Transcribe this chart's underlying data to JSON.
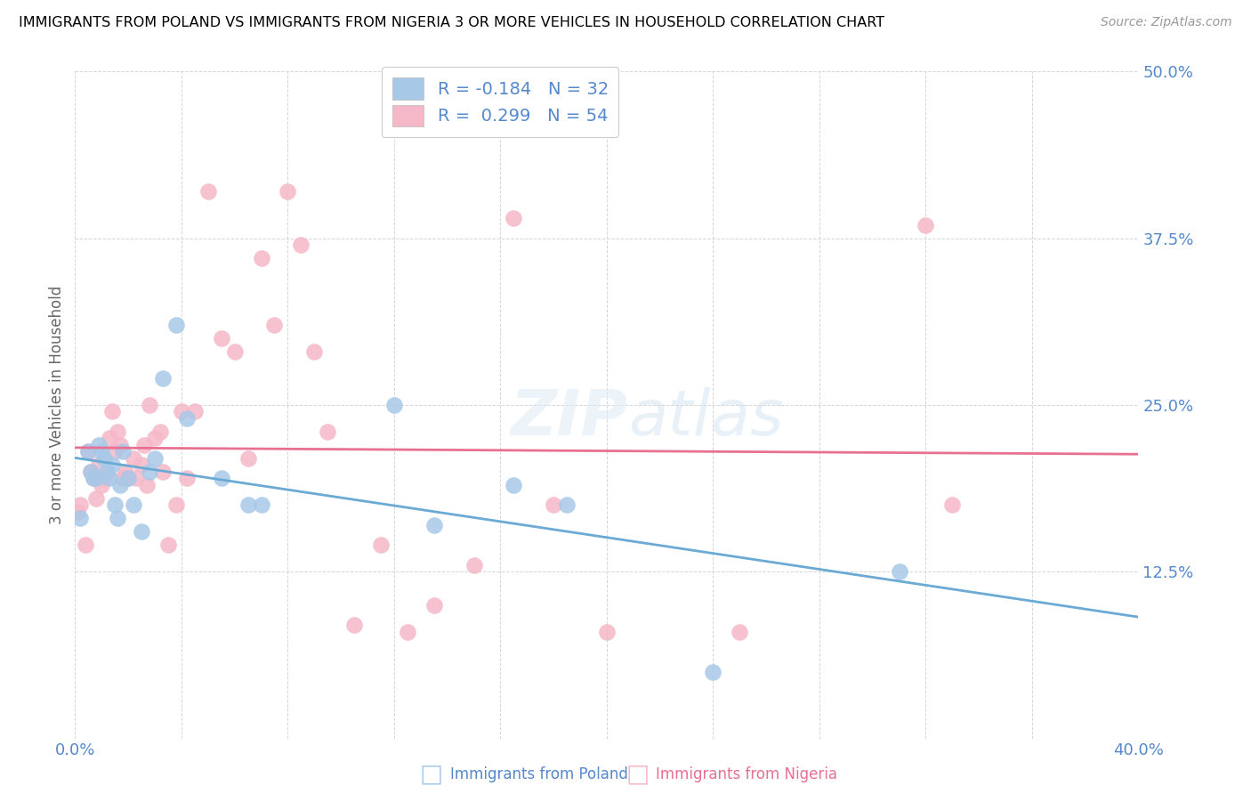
{
  "title": "IMMIGRANTS FROM POLAND VS IMMIGRANTS FROM NIGERIA 3 OR MORE VEHICLES IN HOUSEHOLD CORRELATION CHART",
  "source": "Source: ZipAtlas.com",
  "ylabel": "3 or more Vehicles in Household",
  "xlabel_poland": "Immigrants from Poland",
  "xlabel_nigeria": "Immigrants from Nigeria",
  "xlim": [
    0.0,
    0.4
  ],
  "ylim": [
    0.0,
    0.5
  ],
  "xticks": [
    0.0,
    0.04,
    0.08,
    0.12,
    0.16,
    0.2,
    0.24,
    0.28,
    0.32,
    0.36,
    0.4
  ],
  "yticks": [
    0.0,
    0.125,
    0.25,
    0.375,
    0.5
  ],
  "r_poland": -0.184,
  "n_poland": 32,
  "r_nigeria": 0.299,
  "n_nigeria": 54,
  "color_poland": "#a8c8e8",
  "color_nigeria": "#f5b8c8",
  "line_color_poland": "#6aaad4",
  "line_color_nigeria": "#e87090",
  "tick_color": "#5588cc",
  "poland_x": [
    0.002,
    0.005,
    0.006,
    0.007,
    0.008,
    0.009,
    0.01,
    0.011,
    0.012,
    0.013,
    0.014,
    0.015,
    0.016,
    0.017,
    0.018,
    0.02,
    0.022,
    0.025,
    0.028,
    0.03,
    0.033,
    0.038,
    0.042,
    0.055,
    0.065,
    0.07,
    0.12,
    0.135,
    0.165,
    0.185,
    0.24,
    0.31
  ],
  "poland_y": [
    0.165,
    0.215,
    0.2,
    0.195,
    0.195,
    0.22,
    0.215,
    0.21,
    0.2,
    0.195,
    0.205,
    0.175,
    0.165,
    0.19,
    0.215,
    0.195,
    0.175,
    0.155,
    0.2,
    0.21,
    0.27,
    0.31,
    0.24,
    0.195,
    0.175,
    0.175,
    0.25,
    0.16,
    0.19,
    0.175,
    0.05,
    0.125
  ],
  "nigeria_x": [
    0.001,
    0.002,
    0.004,
    0.005,
    0.006,
    0.007,
    0.008,
    0.009,
    0.01,
    0.011,
    0.012,
    0.013,
    0.014,
    0.015,
    0.016,
    0.017,
    0.018,
    0.019,
    0.02,
    0.022,
    0.023,
    0.025,
    0.026,
    0.027,
    0.028,
    0.03,
    0.032,
    0.033,
    0.035,
    0.038,
    0.04,
    0.042,
    0.045,
    0.05,
    0.055,
    0.06,
    0.065,
    0.07,
    0.075,
    0.08,
    0.085,
    0.09,
    0.095,
    0.105,
    0.115,
    0.125,
    0.135,
    0.15,
    0.165,
    0.18,
    0.2,
    0.25,
    0.32,
    0.33
  ],
  "nigeria_y": [
    0.17,
    0.175,
    0.145,
    0.215,
    0.2,
    0.195,
    0.18,
    0.205,
    0.19,
    0.195,
    0.2,
    0.225,
    0.245,
    0.215,
    0.23,
    0.22,
    0.195,
    0.2,
    0.195,
    0.21,
    0.195,
    0.205,
    0.22,
    0.19,
    0.25,
    0.225,
    0.23,
    0.2,
    0.145,
    0.175,
    0.245,
    0.195,
    0.245,
    0.41,
    0.3,
    0.29,
    0.21,
    0.36,
    0.31,
    0.41,
    0.37,
    0.29,
    0.23,
    0.085,
    0.145,
    0.08,
    0.1,
    0.13,
    0.39,
    0.175,
    0.08,
    0.08,
    0.385,
    0.175
  ]
}
